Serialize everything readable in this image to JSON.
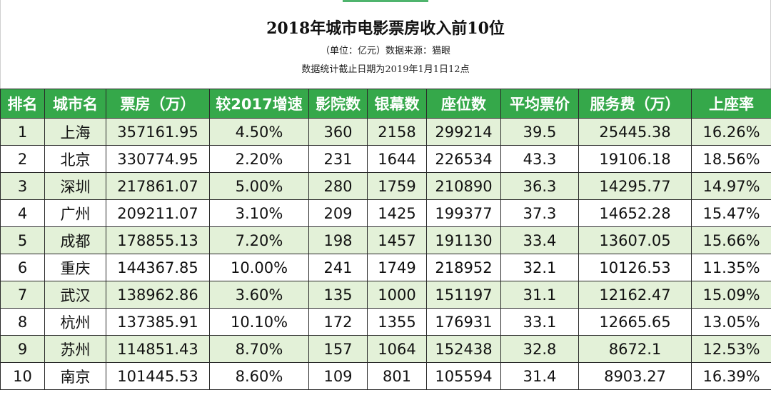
{
  "title": "2018年城市电影票房收入前10位",
  "subtitle": "（单位：亿元）数据来源：猫眼",
  "note": "数据统计截止日期为2019年1月1日12点",
  "colors": {
    "header_bg": "#35a84a",
    "odd_row_bg": "#e3f1d8",
    "even_row_bg": "#ffffff"
  },
  "columns": [
    "排名",
    "城市名",
    "票房（万）",
    "较2017增速",
    "影院数",
    "银幕数",
    "座位数",
    "平均票价",
    "服务费（万）",
    "上座率"
  ],
  "rows": [
    [
      "1",
      "上海",
      "357161.95",
      "4.50%",
      "360",
      "2158",
      "299214",
      "39.5",
      "25445.38",
      "16.26%"
    ],
    [
      "2",
      "北京",
      "330774.95",
      "2.20%",
      "231",
      "1644",
      "226534",
      "43.3",
      "19106.18",
      "18.56%"
    ],
    [
      "3",
      "深圳",
      "217861.07",
      "5.00%",
      "280",
      "1759",
      "210890",
      "36.3",
      "14295.77",
      "14.97%"
    ],
    [
      "4",
      "广州",
      "209211.07",
      "3.10%",
      "209",
      "1425",
      "199377",
      "37.3",
      "14652.28",
      "15.47%"
    ],
    [
      "5",
      "成都",
      "178855.13",
      "7.20%",
      "198",
      "1457",
      "191130",
      "33.4",
      "13607.05",
      "15.66%"
    ],
    [
      "6",
      "重庆",
      "144367.85",
      "10.00%",
      "241",
      "1749",
      "218952",
      "32.1",
      "10126.53",
      "11.35%"
    ],
    [
      "7",
      "武汉",
      "138962.86",
      "3.60%",
      "135",
      "1000",
      "151197",
      "31.1",
      "12162.47",
      "15.09%"
    ],
    [
      "8",
      "杭州",
      "137385.91",
      "10.10%",
      "172",
      "1355",
      "176931",
      "33.1",
      "12665.65",
      "13.05%"
    ],
    [
      "9",
      "苏州",
      "114851.43",
      "8.70%",
      "157",
      "1064",
      "152438",
      "32.8",
      "8672.1",
      "12.53%"
    ],
    [
      "10",
      "南京",
      "101445.53",
      "8.60%",
      "109",
      "801",
      "105594",
      "31.4",
      "8903.27",
      "16.39%"
    ]
  ]
}
